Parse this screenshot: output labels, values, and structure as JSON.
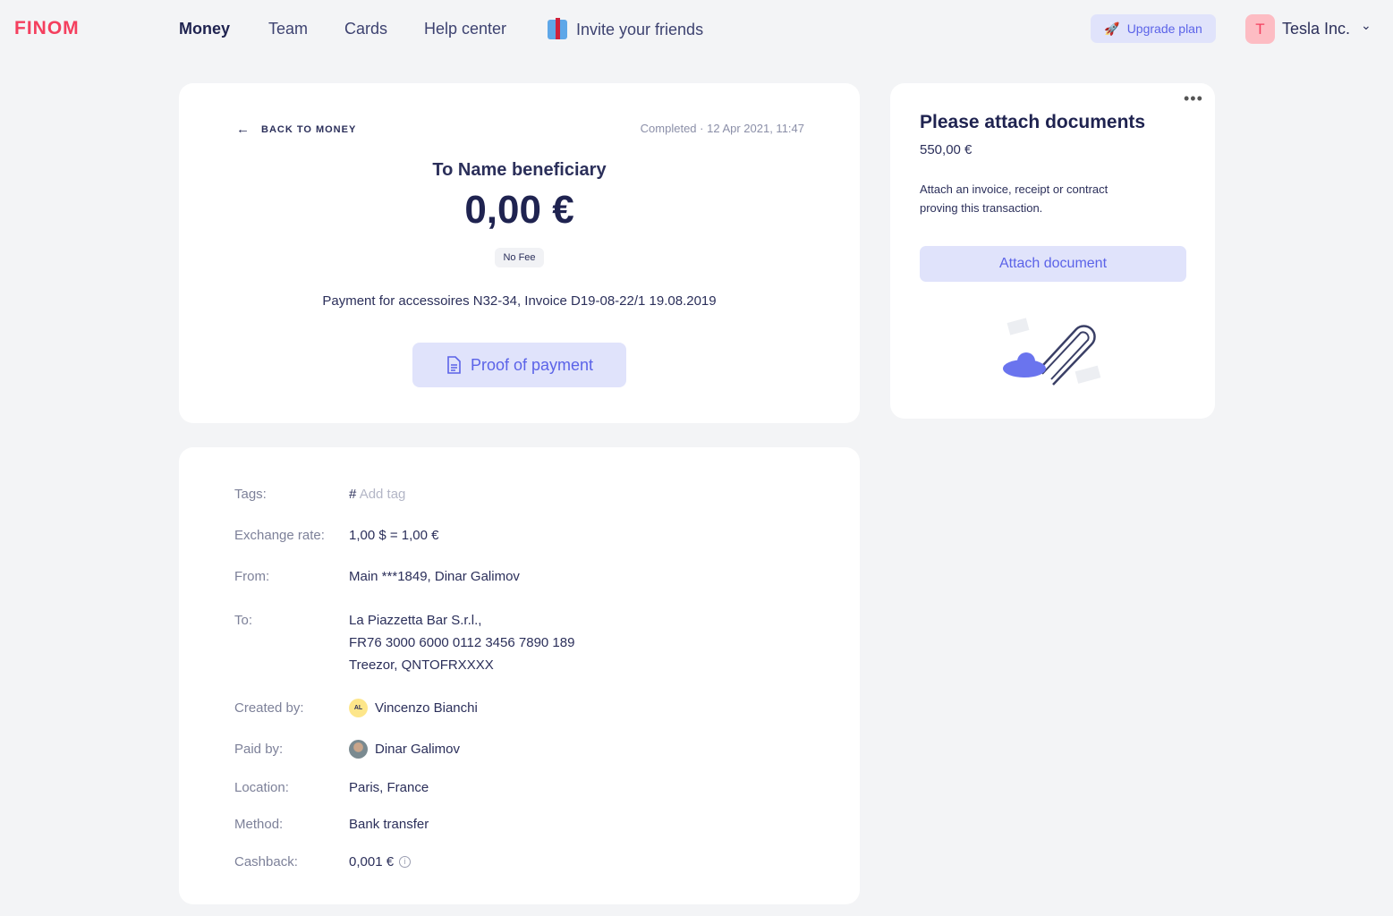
{
  "header": {
    "logo": "FINOM",
    "nav": [
      "Money",
      "Team",
      "Cards",
      "Help center",
      "Invite your friends"
    ],
    "upgrade_label": "Upgrade plan",
    "avatar_initial": "T",
    "company": "Tesla Inc."
  },
  "transaction": {
    "back_label": "BACK TO MONEY",
    "status": "Completed · 12 Apr 2021, 11:47",
    "beneficiary": "To Name beneficiary",
    "amount": "0,00 €",
    "fee_badge": "No Fee",
    "description": "Payment for accessoires N32-34, Invoice D19-08-22/1 19.08.2019",
    "proof_label": "Proof of payment"
  },
  "attach": {
    "title": "Please attach documents",
    "amount": "550,00 €",
    "text": "Attach an invoice, receipt or contract proving this transaction.",
    "button": "Attach document"
  },
  "details": {
    "tags_label": "Tags:",
    "tags_hash": "#",
    "tags_placeholder": "Add tag",
    "rate_label": "Exchange rate:",
    "rate": "1,00 $ = 1,00 €",
    "from_label": "From:",
    "from": "Main ***1849, Dinar Galimov",
    "to_label": "To:",
    "to_lines": [
      "La Piazzetta Bar S.r.l.,",
      "FR76 3000 6000 0112 3456 7890 189",
      "Treezor, QNTOFRXXXX"
    ],
    "created_label": "Created by:",
    "created_initials": "AL",
    "created": "Vincenzo Bianchi",
    "paid_label": "Paid by:",
    "paid": "Dinar Galimov",
    "location_label": "Location:",
    "location": "Paris, France",
    "method_label": "Method:",
    "method": "Bank transfer",
    "cashback_label": "Cashback:",
    "cashback": "0,001 €"
  }
}
